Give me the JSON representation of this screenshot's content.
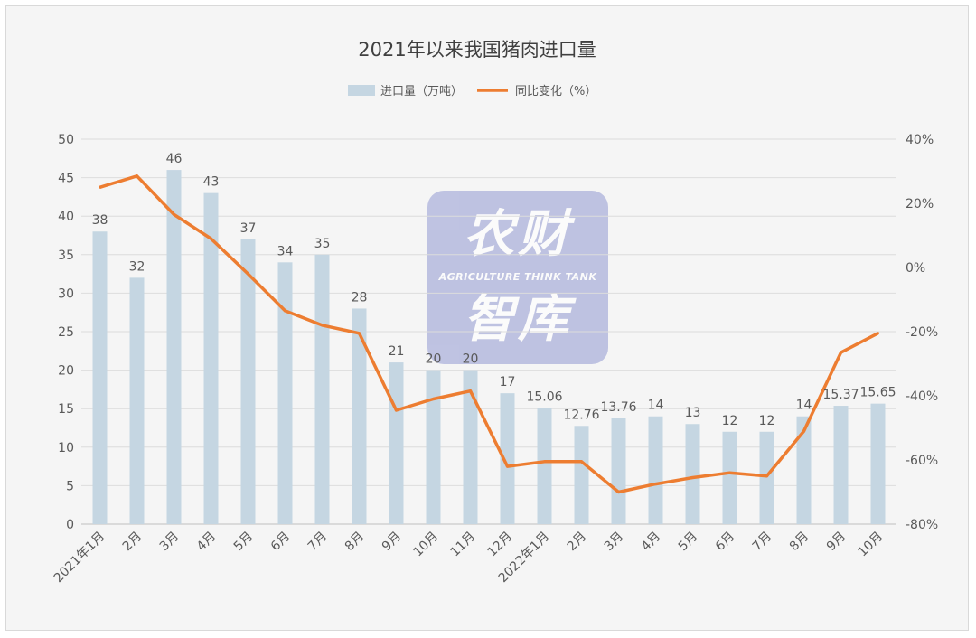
{
  "watermark": {
    "line1": "农财",
    "line2": "AGRICULTURE THINK TANK",
    "line3": "智库"
  },
  "colors": {
    "bar": "#c5d6e2",
    "line": "#ed7d31",
    "grid": "#dcdcdc",
    "axis_text": "#595959",
    "title": "#404040",
    "background": "#f5f5f5"
  },
  "chart_data": {
    "type": "bar",
    "title": "2021年以来我国猪肉进口量",
    "legend_position": "top",
    "grid": true,
    "categories": [
      "2021年1月",
      "2月",
      "3月",
      "4月",
      "5月",
      "6月",
      "7月",
      "8月",
      "9月",
      "10月",
      "11月",
      "12月",
      "2022年1月",
      "2月",
      "3月",
      "4月",
      "5月",
      "6月",
      "7月",
      "8月",
      "9月",
      "10月"
    ],
    "series": [
      {
        "name": "进口量（万吨）",
        "type": "bar",
        "axis": "left",
        "values": [
          38,
          32,
          46,
          43,
          37,
          34,
          35,
          28,
          21,
          20,
          20,
          17,
          15.06,
          12.76,
          13.76,
          14,
          13,
          12,
          12,
          14,
          15.37,
          15.65
        ],
        "labels": [
          "38",
          "32",
          "46",
          "43",
          "37",
          "34",
          "35",
          "28",
          "21",
          "20",
          "20",
          "17",
          "15.06",
          "12.76",
          "13.76",
          "14",
          "13",
          "12",
          "12",
          "14",
          "15.37",
          "15.65"
        ]
      },
      {
        "name": "同比变化（%）",
        "type": "line",
        "axis": "right",
        "values": [
          25,
          28.5,
          16.5,
          9,
          -2,
          -13.5,
          -18,
          -20.5,
          -44.5,
          -41,
          -38.5,
          -62,
          -60.5,
          -60.5,
          -70,
          -67.5,
          -65.5,
          -64,
          -65,
          -51,
          -26.5,
          -20.5
        ]
      }
    ],
    "y_left": {
      "min": 0,
      "max": 50,
      "ticks": [
        "0",
        "5",
        "10",
        "15",
        "20",
        "25",
        "30",
        "35",
        "40",
        "45",
        "50"
      ]
    },
    "y_right": {
      "min": -80,
      "max": 40,
      "ticks": [
        "-80%",
        "-60%",
        "-40%",
        "-20%",
        "0%",
        "20%",
        "40%"
      ]
    }
  }
}
